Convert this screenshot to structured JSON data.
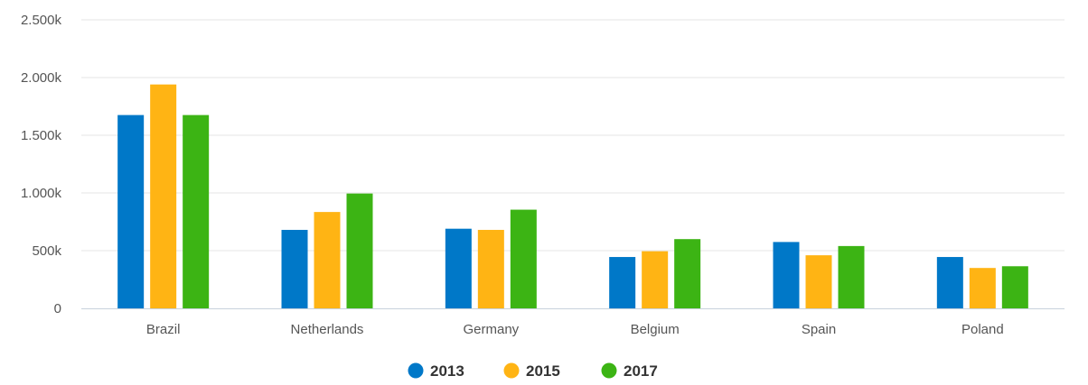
{
  "chart_data": {
    "type": "bar",
    "categories": [
      "Brazil",
      "Netherlands",
      "Germany",
      "Belgium",
      "Spain",
      "Poland"
    ],
    "series": [
      {
        "name": "2013",
        "color": "#0078c8",
        "values": [
          1675,
          680,
          690,
          445,
          575,
          445
        ]
      },
      {
        "name": "2015",
        "color": "#ffb414",
        "values": [
          1940,
          835,
          680,
          495,
          460,
          350
        ]
      },
      {
        "name": "2017",
        "color": "#3cb414",
        "values": [
          1675,
          995,
          855,
          600,
          540,
          365
        ]
      }
    ],
    "ylim": [
      0,
      2500
    ],
    "yticks": [
      0,
      500,
      1000,
      1500,
      2000,
      2500
    ],
    "ytick_labels": [
      "0",
      "500k",
      "1.000k",
      "1.500k",
      "2.000k",
      "2.500k"
    ],
    "title": "",
    "xlabel": "",
    "ylabel": "",
    "grid": true,
    "legend_position": "bottom-center"
  }
}
